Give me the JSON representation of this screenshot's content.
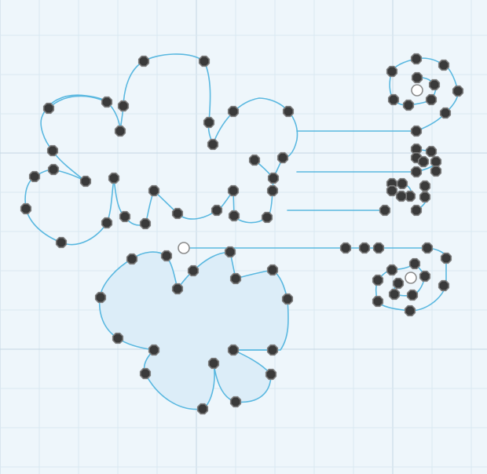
{
  "editor": {
    "colors": {
      "background": "#eef6fb",
      "grid_minor": "#d9e8f1",
      "grid_major": "#c4d7e3",
      "path_stroke": "#5ab8e0",
      "shape_fill": "#dcedf8",
      "anchor_fill": "#3a3a3a",
      "anchor_outline": "#7d7d7d",
      "selection_ring": "#ffffff"
    },
    "icons": {
      "anchor": "filled-octagon-anchor-point-icon",
      "selected_handle": "hollow-ring-handle-icon"
    }
  }
}
